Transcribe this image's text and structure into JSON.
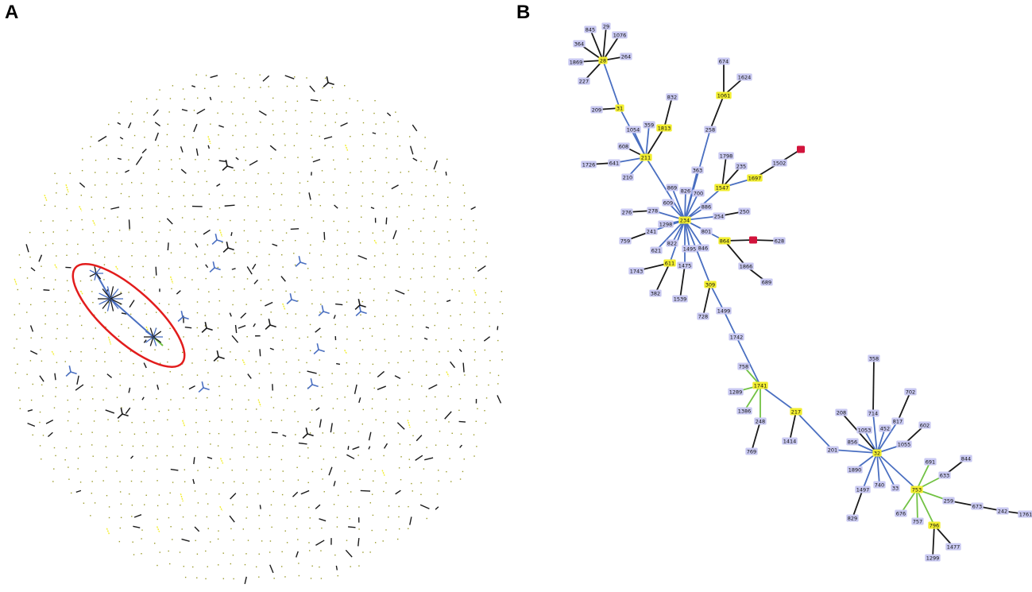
{
  "panels": {
    "a_label": "A",
    "b_label": "B"
  },
  "colors": {
    "edge_blue": "#4a6fc1",
    "edge_green": "#72c244",
    "edge_black": "#1a1a1a",
    "node_lavender": "#c9c9f2",
    "node_yellow": "#f2ee2f",
    "node_red": "#d2143c",
    "highlight_ellipse": "#e21c1c",
    "dot": "#9a9a2a"
  },
  "tree": {
    "nodes": [
      {
        "id": "28",
        "t": "y"
      },
      {
        "id": "845",
        "t": "l"
      },
      {
        "id": "29",
        "t": "l"
      },
      {
        "id": "1076",
        "t": "l"
      },
      {
        "id": "364",
        "t": "l"
      },
      {
        "id": "264",
        "t": "l"
      },
      {
        "id": "1869",
        "t": "l"
      },
      {
        "id": "227",
        "t": "l"
      },
      {
        "id": "31",
        "t": "y"
      },
      {
        "id": "209",
        "t": "l"
      },
      {
        "id": "1054",
        "t": "l"
      },
      {
        "id": "359",
        "t": "l"
      },
      {
        "id": "1813",
        "t": "y"
      },
      {
        "id": "832",
        "t": "l"
      },
      {
        "id": "608",
        "t": "l"
      },
      {
        "id": "211",
        "t": "y"
      },
      {
        "id": "1726",
        "t": "l"
      },
      {
        "id": "641",
        "t": "l"
      },
      {
        "id": "210",
        "t": "l"
      },
      {
        "id": "674",
        "t": "l"
      },
      {
        "id": "1624",
        "t": "l"
      },
      {
        "id": "1061",
        "t": "y"
      },
      {
        "id": "258",
        "t": "l"
      },
      {
        "id": "363",
        "t": "l"
      },
      {
        "id": "1798",
        "t": "l"
      },
      {
        "id": "235",
        "t": "l"
      },
      {
        "id": "1502",
        "t": "l"
      },
      {
        "id": "red1",
        "label": "",
        "t": "r"
      },
      {
        "id": "1697",
        "t": "y"
      },
      {
        "id": "1547",
        "t": "y"
      },
      {
        "id": "869",
        "t": "l"
      },
      {
        "id": "826",
        "t": "l"
      },
      {
        "id": "700",
        "t": "l"
      },
      {
        "id": "609",
        "t": "l"
      },
      {
        "id": "886",
        "t": "l"
      },
      {
        "id": "276",
        "t": "l"
      },
      {
        "id": "278",
        "t": "l"
      },
      {
        "id": "234",
        "t": "y"
      },
      {
        "id": "254",
        "t": "l"
      },
      {
        "id": "250",
        "t": "l"
      },
      {
        "id": "1298",
        "t": "l"
      },
      {
        "id": "241",
        "t": "l"
      },
      {
        "id": "801",
        "t": "l"
      },
      {
        "id": "759",
        "t": "l"
      },
      {
        "id": "822",
        "t": "l"
      },
      {
        "id": "864",
        "t": "y"
      },
      {
        "id": "red2",
        "label": "",
        "t": "r"
      },
      {
        "id": "628",
        "t": "l"
      },
      {
        "id": "621",
        "t": "l"
      },
      {
        "id": "1495",
        "t": "l"
      },
      {
        "id": "846",
        "t": "l"
      },
      {
        "id": "611",
        "t": "y"
      },
      {
        "id": "1475",
        "t": "l"
      },
      {
        "id": "1743",
        "t": "l"
      },
      {
        "id": "1866",
        "t": "l"
      },
      {
        "id": "689",
        "t": "l"
      },
      {
        "id": "382",
        "t": "l"
      },
      {
        "id": "1539",
        "t": "l"
      },
      {
        "id": "309",
        "t": "y"
      },
      {
        "id": "1499",
        "t": "l"
      },
      {
        "id": "728",
        "t": "l"
      },
      {
        "id": "1742",
        "t": "l"
      },
      {
        "id": "758",
        "t": "l"
      },
      {
        "id": "1741",
        "t": "y"
      },
      {
        "id": "1289",
        "t": "l"
      },
      {
        "id": "1386",
        "t": "l"
      },
      {
        "id": "248",
        "t": "l"
      },
      {
        "id": "217",
        "t": "y"
      },
      {
        "id": "769",
        "t": "l"
      },
      {
        "id": "1414",
        "t": "l"
      },
      {
        "id": "358",
        "t": "l"
      },
      {
        "id": "208",
        "t": "l"
      },
      {
        "id": "714",
        "t": "l"
      },
      {
        "id": "702",
        "t": "l"
      },
      {
        "id": "817",
        "t": "l"
      },
      {
        "id": "452",
        "t": "l"
      },
      {
        "id": "1053",
        "t": "l"
      },
      {
        "id": "602",
        "t": "l"
      },
      {
        "id": "856",
        "t": "l"
      },
      {
        "id": "1055",
        "t": "l"
      },
      {
        "id": "201",
        "t": "l"
      },
      {
        "id": "32",
        "t": "y"
      },
      {
        "id": "1890",
        "t": "l"
      },
      {
        "id": "740",
        "t": "l"
      },
      {
        "id": "33",
        "t": "l"
      },
      {
        "id": "1497",
        "t": "l"
      },
      {
        "id": "691",
        "t": "l"
      },
      {
        "id": "844",
        "t": "l"
      },
      {
        "id": "633",
        "t": "l"
      },
      {
        "id": "753",
        "t": "y"
      },
      {
        "id": "259",
        "t": "l"
      },
      {
        "id": "673",
        "t": "l"
      },
      {
        "id": "242",
        "t": "l"
      },
      {
        "id": "1761",
        "t": "l"
      },
      {
        "id": "676",
        "t": "l"
      },
      {
        "id": "757",
        "t": "l"
      },
      {
        "id": "829",
        "t": "l"
      },
      {
        "id": "796",
        "t": "y"
      },
      {
        "id": "1477",
        "t": "l"
      },
      {
        "id": "1299",
        "t": "l"
      }
    ],
    "edges": [
      [
        "28",
        "845",
        "k"
      ],
      [
        "28",
        "29",
        "k"
      ],
      [
        "28",
        "1076",
        "k"
      ],
      [
        "28",
        "364",
        "k"
      ],
      [
        "28",
        "264",
        "k"
      ],
      [
        "28",
        "1869",
        "k"
      ],
      [
        "28",
        "227",
        "k"
      ],
      [
        "28",
        "31",
        "b"
      ],
      [
        "31",
        "209",
        "k"
      ],
      [
        "31",
        "211",
        "b"
      ],
      [
        "211",
        "1054",
        "b"
      ],
      [
        "211",
        "359",
        "b"
      ],
      [
        "211",
        "1813",
        "k"
      ],
      [
        "1813",
        "832",
        "k"
      ],
      [
        "211",
        "608",
        "k"
      ],
      [
        "211",
        "641",
        "b"
      ],
      [
        "641",
        "1726",
        "k"
      ],
      [
        "211",
        "210",
        "b"
      ],
      [
        "211",
        "234",
        "b"
      ],
      [
        "1061",
        "674",
        "k"
      ],
      [
        "1061",
        "1624",
        "k"
      ],
      [
        "1061",
        "258",
        "k"
      ],
      [
        "258",
        "234",
        "b"
      ],
      [
        "363",
        "234",
        "b"
      ],
      [
        "1547",
        "1798",
        "k"
      ],
      [
        "1547",
        "235",
        "k"
      ],
      [
        "1547",
        "1697",
        "b"
      ],
      [
        "1697",
        "1502",
        "k"
      ],
      [
        "1502",
        "red1",
        "k"
      ],
      [
        "1547",
        "234",
        "b"
      ],
      [
        "869",
        "234",
        "b"
      ],
      [
        "826",
        "234",
        "b"
      ],
      [
        "700",
        "234",
        "b"
      ],
      [
        "609",
        "234",
        "b"
      ],
      [
        "886",
        "234",
        "b"
      ],
      [
        "278",
        "276",
        "k"
      ],
      [
        "278",
        "234",
        "b"
      ],
      [
        "254",
        "234",
        "b"
      ],
      [
        "254",
        "250",
        "k"
      ],
      [
        "1298",
        "234",
        "b"
      ],
      [
        "241",
        "234",
        "b"
      ],
      [
        "801",
        "234",
        "b"
      ],
      [
        "241",
        "759",
        "k"
      ],
      [
        "822",
        "234",
        "b"
      ],
      [
        "864",
        "234",
        "b"
      ],
      [
        "864",
        "red2",
        "k"
      ],
      [
        "red2",
        "628",
        "k"
      ],
      [
        "864",
        "1866",
        "k"
      ],
      [
        "1866",
        "689",
        "k"
      ],
      [
        "621",
        "234",
        "b"
      ],
      [
        "1495",
        "234",
        "b"
      ],
      [
        "846",
        "234",
        "b"
      ],
      [
        "611",
        "234",
        "b"
      ],
      [
        "611",
        "1743",
        "k"
      ],
      [
        "611",
        "382",
        "k"
      ],
      [
        "1475",
        "234",
        "b"
      ],
      [
        "1475",
        "1539",
        "k"
      ],
      [
        "309",
        "234",
        "b"
      ],
      [
        "309",
        "728",
        "k"
      ],
      [
        "309",
        "1499",
        "b"
      ],
      [
        "1499",
        "1742",
        "b"
      ],
      [
        "1742",
        "1741",
        "b"
      ],
      [
        "1741",
        "758",
        "g"
      ],
      [
        "1741",
        "1289",
        "g"
      ],
      [
        "1741",
        "1386",
        "g"
      ],
      [
        "1741",
        "248",
        "g"
      ],
      [
        "248",
        "769",
        "k"
      ],
      [
        "1741",
        "217",
        "b"
      ],
      [
        "217",
        "1414",
        "k"
      ],
      [
        "217",
        "201",
        "b"
      ],
      [
        "201",
        "32",
        "b"
      ],
      [
        "32",
        "208",
        "k"
      ],
      [
        "32",
        "856",
        "b"
      ],
      [
        "32",
        "714",
        "b"
      ],
      [
        "714",
        "358",
        "k"
      ],
      [
        "32",
        "452",
        "b"
      ],
      [
        "32",
        "1053",
        "b"
      ],
      [
        "32",
        "817",
        "b"
      ],
      [
        "817",
        "702",
        "k"
      ],
      [
        "32",
        "1055",
        "b"
      ],
      [
        "1055",
        "602",
        "k"
      ],
      [
        "32",
        "1890",
        "b"
      ],
      [
        "32",
        "740",
        "b"
      ],
      [
        "32",
        "33",
        "b"
      ],
      [
        "32",
        "1497",
        "b"
      ],
      [
        "1497",
        "829",
        "k"
      ],
      [
        "32",
        "753",
        "b"
      ],
      [
        "753",
        "691",
        "g"
      ],
      [
        "753",
        "633",
        "g"
      ],
      [
        "633",
        "844",
        "k"
      ],
      [
        "753",
        "259",
        "g"
      ],
      [
        "259",
        "673",
        "k"
      ],
      [
        "673",
        "242",
        "k"
      ],
      [
        "242",
        "1761",
        "k"
      ],
      [
        "753",
        "676",
        "g"
      ],
      [
        "753",
        "757",
        "g"
      ],
      [
        "753",
        "796",
        "g"
      ],
      [
        "796",
        "1477",
        "k"
      ],
      [
        "796",
        "1299",
        "k"
      ]
    ]
  }
}
